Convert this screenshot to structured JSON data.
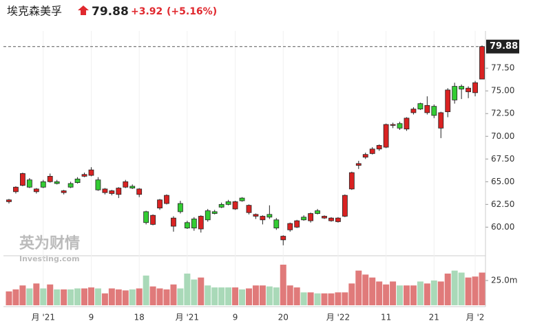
{
  "chart_data": {
    "type": "candlestick",
    "title": "埃克森美孚",
    "last": {
      "value": 79.88,
      "label": "79.88"
    },
    "change": "+3.92",
    "change_pct": "(+5.16%)",
    "watermark": "英为财情",
    "watermark_sub": "Investing.com",
    "up_color": "#d92222",
    "down_color": "#33cc33",
    "up_volume_color": "#e07a7a",
    "down_volume_color": "#a9d9b8",
    "ylim": [
      57,
      81.6
    ],
    "yticks": [
      {
        "value": 60,
        "label": "60.00"
      },
      {
        "value": 62.5,
        "label": "62.50"
      },
      {
        "value": 65,
        "label": "65.00"
      },
      {
        "value": 67.5,
        "label": "67.50"
      },
      {
        "value": 70,
        "label": "70.00"
      },
      {
        "value": 72.5,
        "label": "72.50"
      },
      {
        "value": 75,
        "label": "75.00"
      },
      {
        "value": 77.5,
        "label": "77.50"
      }
    ],
    "y2lim": [
      0,
      50
    ],
    "y2ticks": [
      {
        "value": 25,
        "label": "25.0m"
      }
    ],
    "categories": [
      null,
      null,
      null,
      null,
      null,
      "月 '21",
      null,
      null,
      null,
      null,
      null,
      null,
      "9",
      null,
      null,
      null,
      null,
      null,
      null,
      "18",
      null,
      null,
      null,
      null,
      null,
      null,
      "月 '21",
      null,
      null,
      null,
      null,
      null,
      null,
      "9",
      null,
      null,
      null,
      null,
      null,
      null,
      "20",
      null,
      null,
      null,
      null,
      null,
      null,
      null,
      "月 '22",
      null,
      null,
      null,
      null,
      null,
      null,
      "11",
      null,
      null,
      null,
      null,
      null,
      null,
      "21",
      null,
      null,
      null,
      null,
      null,
      "月 '2",
      null
    ],
    "ohlc": [
      [
        62.8,
        63.1,
        62.6,
        63.0
      ],
      [
        63.9,
        64.5,
        63.7,
        64.4
      ],
      [
        64.6,
        66.0,
        64.5,
        65.9
      ],
      [
        65.2,
        65.4,
        64.3,
        64.4
      ],
      [
        63.9,
        64.3,
        63.7,
        64.2
      ],
      [
        65.0,
        65.2,
        64.3,
        64.4
      ],
      [
        65.0,
        65.9,
        64.9,
        65.6
      ],
      [
        65.0,
        65.2,
        64.7,
        64.8
      ],
      [
        63.8,
        64.1,
        63.6,
        64.0
      ],
      [
        64.8,
        65.0,
        64.3,
        64.4
      ],
      [
        65.3,
        65.5,
        64.8,
        64.9
      ],
      [
        65.6,
        66.0,
        65.5,
        65.8
      ],
      [
        65.7,
        66.6,
        65.6,
        66.3
      ],
      [
        65.2,
        65.5,
        64.0,
        64.1
      ],
      [
        63.8,
        64.3,
        63.6,
        64.2
      ],
      [
        63.7,
        64.1,
        63.5,
        64.0
      ],
      [
        63.6,
        64.4,
        63.2,
        64.3
      ],
      [
        64.4,
        65.2,
        64.3,
        65.0
      ],
      [
        64.5,
        64.7,
        64.2,
        64.3
      ],
      [
        63.6,
        64.3,
        63.3,
        64.2
      ],
      [
        61.7,
        61.8,
        60.3,
        60.5
      ],
      [
        60.3,
        61.4,
        60.2,
        61.3
      ],
      [
        62.1,
        63.1,
        61.9,
        63.0
      ],
      [
        62.6,
        63.6,
        62.5,
        63.5
      ],
      [
        60.1,
        61.2,
        59.5,
        61.0
      ],
      [
        62.6,
        62.9,
        61.5,
        61.7
      ],
      [
        60.5,
        60.7,
        59.8,
        59.9
      ],
      [
        60.9,
        61.1,
        59.6,
        59.9
      ],
      [
        59.8,
        61.3,
        59.4,
        61.2
      ],
      [
        61.8,
        62.0,
        60.6,
        60.8
      ],
      [
        61.7,
        61.9,
        61.4,
        61.5
      ],
      [
        62.5,
        62.7,
        62.1,
        62.2
      ],
      [
        62.8,
        63.0,
        62.4,
        62.5
      ],
      [
        62.0,
        62.9,
        61.9,
        62.8
      ],
      [
        63.2,
        63.3,
        62.8,
        62.9
      ],
      [
        61.6,
        62.5,
        61.4,
        62.4
      ],
      [
        61.2,
        61.5,
        60.9,
        61.4
      ],
      [
        60.8,
        61.3,
        60.3,
        61.2
      ],
      [
        61.4,
        62.4,
        60.9,
        61.1
      ],
      [
        60.8,
        61.0,
        59.7,
        59.9
      ],
      [
        58.6,
        59.1,
        58.0,
        59.0
      ],
      [
        59.7,
        60.5,
        59.5,
        60.4
      ],
      [
        60.0,
        60.8,
        59.9,
        60.7
      ],
      [
        61.1,
        61.3,
        60.7,
        60.8
      ],
      [
        60.7,
        61.6,
        60.5,
        61.5
      ],
      [
        61.8,
        62.0,
        61.4,
        61.5
      ],
      [
        61.0,
        61.3,
        60.9,
        61.2
      ],
      [
        60.7,
        61.1,
        60.6,
        61.0
      ],
      [
        60.6,
        61.1,
        60.5,
        61.0
      ],
      [
        61.2,
        63.6,
        61.1,
        63.5
      ],
      [
        64.2,
        66.1,
        64.1,
        66.0
      ],
      [
        66.8,
        67.3,
        66.4,
        67.0
      ],
      [
        67.7,
        68.2,
        67.5,
        68.0
      ],
      [
        68.1,
        68.8,
        68.0,
        68.6
      ],
      [
        68.6,
        69.1,
        68.4,
        69.0
      ],
      [
        68.8,
        71.4,
        68.7,
        71.3
      ],
      [
        71.2,
        71.5,
        70.9,
        71.3
      ],
      [
        71.4,
        71.6,
        70.7,
        70.9
      ],
      [
        70.8,
        72.1,
        70.6,
        72.0
      ],
      [
        72.6,
        73.2,
        72.4,
        73.0
      ],
      [
        73.6,
        73.7,
        72.9,
        73.0
      ],
      [
        72.6,
        74.4,
        72.4,
        73.4
      ],
      [
        73.3,
        73.5,
        72.0,
        72.3
      ],
      [
        70.9,
        72.7,
        69.8,
        72.6
      ],
      [
        72.7,
        75.3,
        72.1,
        75.1
      ],
      [
        75.5,
        75.9,
        73.6,
        74.0
      ],
      [
        75.5,
        75.7,
        74.1,
        75.2
      ],
      [
        74.9,
        75.5,
        74.2,
        75.3
      ],
      [
        74.8,
        76.1,
        74.4,
        75.9
      ],
      [
        76.3,
        80.0,
        76.3,
        79.88
      ]
    ],
    "volume": [
      14,
      16,
      20,
      17,
      22,
      17,
      21,
      16,
      16,
      16,
      17,
      17,
      18,
      17,
      12,
      17,
      16,
      15,
      16,
      17,
      30,
      19,
      17,
      16,
      21,
      17,
      32,
      26,
      28,
      20,
      18,
      18,
      18,
      18,
      16,
      17,
      20,
      20,
      19,
      18,
      41,
      20,
      18,
      13,
      13,
      12,
      12,
      12,
      13,
      13,
      22,
      35,
      31,
      28,
      24,
      21,
      24,
      20,
      20,
      20,
      24,
      22,
      25,
      24,
      32,
      35,
      33,
      28,
      29,
      33
    ]
  }
}
